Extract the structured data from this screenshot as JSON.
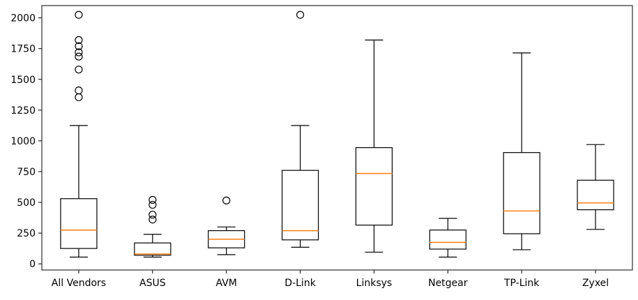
{
  "chart_data": {
    "type": "box",
    "title": "",
    "xlabel": "",
    "ylabel": "",
    "ylim": [
      -50,
      2100
    ],
    "yticks": [
      0,
      250,
      500,
      750,
      1000,
      1250,
      1500,
      1750,
      2000
    ],
    "grid": false,
    "colors": {
      "box": "#000000",
      "median": "#ff7f0e"
    },
    "categories": [
      "All Vendors",
      "ASUS",
      "AVM",
      "D-Link",
      "Linksys",
      "Netgear",
      "TP-Link",
      "Zyxel"
    ],
    "boxes": [
      {
        "whisker_low": 55,
        "q1": 125,
        "median": 275,
        "q3": 530,
        "whisker_high": 1125,
        "outliers": [
          1355,
          1410,
          1580,
          1685,
          1720,
          1770,
          1820,
          2025
        ]
      },
      {
        "whisker_low": 55,
        "q1": 70,
        "median": 80,
        "q3": 170,
        "whisker_high": 240,
        "outliers": [
          360,
          400,
          480,
          520
        ]
      },
      {
        "whisker_low": 75,
        "q1": 130,
        "median": 200,
        "q3": 270,
        "whisker_high": 300,
        "outliers": [
          515
        ]
      },
      {
        "whisker_low": 135,
        "q1": 195,
        "median": 270,
        "q3": 760,
        "whisker_high": 1125,
        "outliers": [
          2025
        ]
      },
      {
        "whisker_low": 95,
        "q1": 315,
        "median": 735,
        "q3": 945,
        "whisker_high": 1820,
        "outliers": []
      },
      {
        "whisker_low": 55,
        "q1": 120,
        "median": 175,
        "q3": 275,
        "whisker_high": 370,
        "outliers": []
      },
      {
        "whisker_low": 115,
        "q1": 245,
        "median": 430,
        "q3": 905,
        "whisker_high": 1715,
        "outliers": []
      },
      {
        "whisker_low": 280,
        "q1": 440,
        "median": 495,
        "q3": 680,
        "whisker_high": 970,
        "outliers": []
      }
    ]
  }
}
